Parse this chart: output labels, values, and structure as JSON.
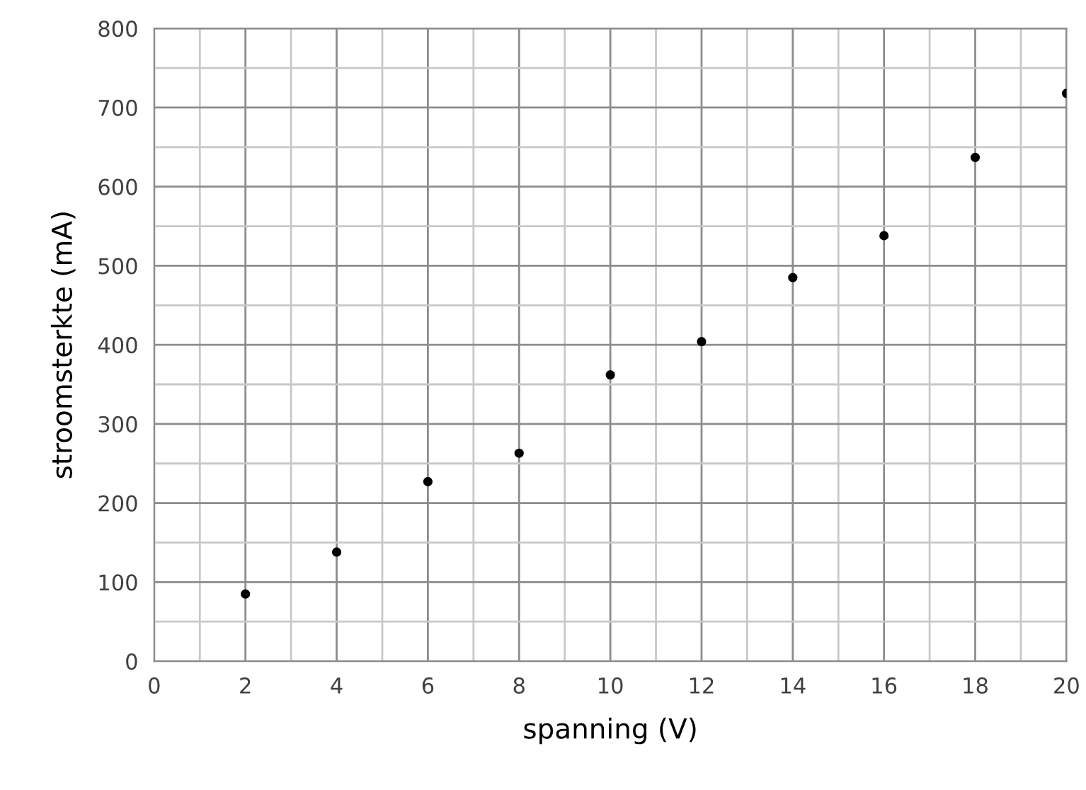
{
  "chart_data": {
    "type": "scatter",
    "xlabel": "spanning (V)",
    "ylabel": "stroomsterkte (mA)",
    "x": [
      2,
      4,
      6,
      8,
      10,
      12,
      14,
      16,
      18,
      20
    ],
    "values": [
      85,
      138,
      227,
      263,
      362,
      404,
      485,
      538,
      637,
      718
    ],
    "color": "#000000",
    "marker": "circle",
    "xlim": [
      0,
      20
    ],
    "ylim": [
      0,
      800
    ],
    "xticks": [
      0,
      2,
      4,
      6,
      8,
      10,
      12,
      14,
      16,
      18,
      20
    ],
    "yticks": [
      0,
      100,
      200,
      300,
      400,
      500,
      600,
      700,
      800
    ],
    "grid": true
  }
}
